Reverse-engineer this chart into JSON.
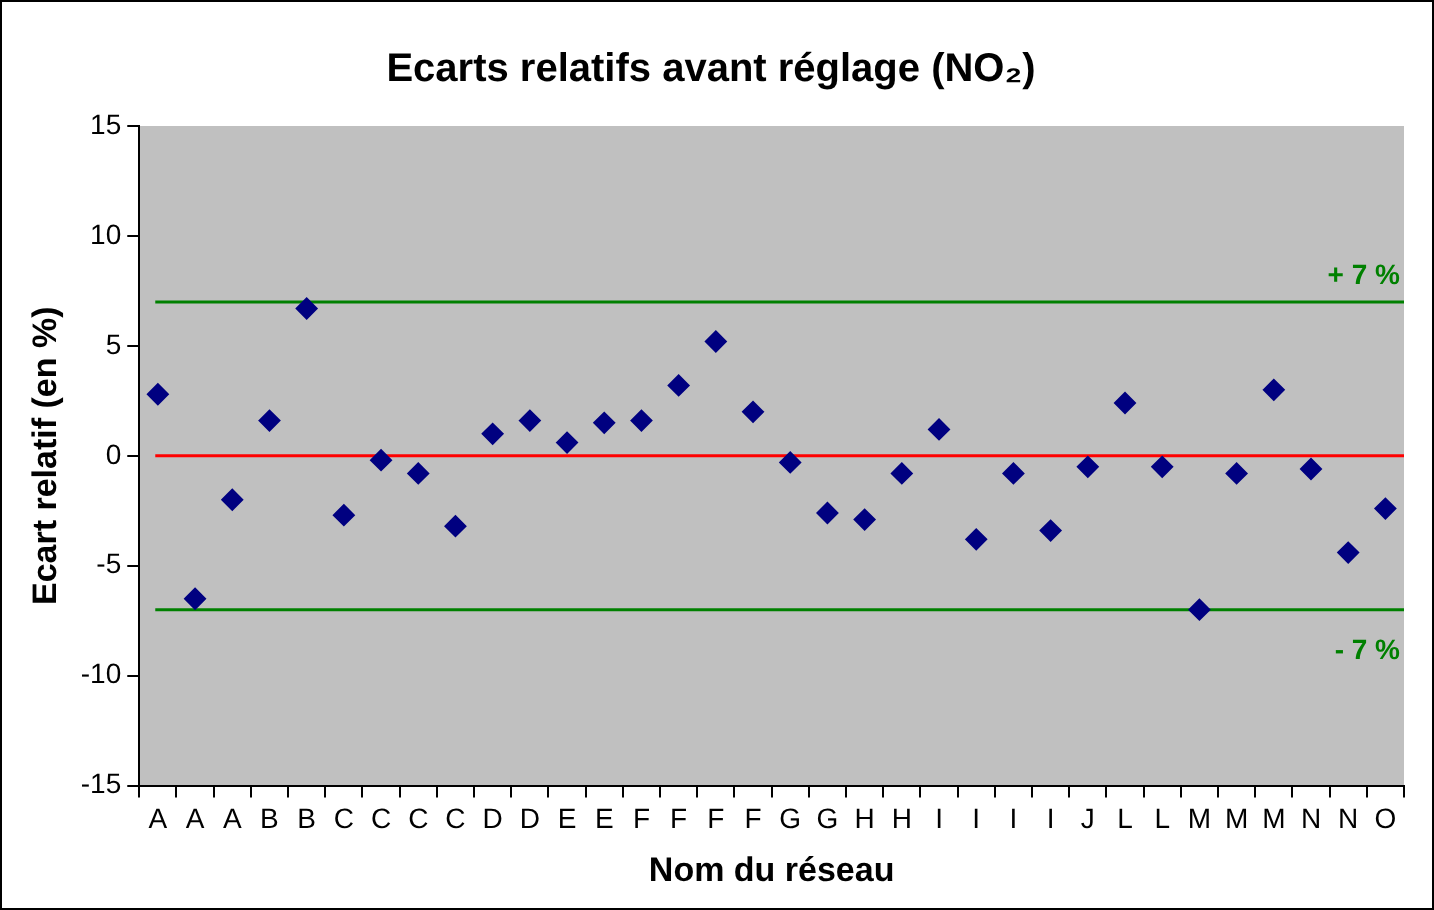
{
  "chart_data": {
    "type": "scatter",
    "title": "Ecarts relatifs avant réglage (NO₂)",
    "xlabel": "Nom du réseau",
    "ylabel": "Ecart relatif (en %)",
    "categories": [
      "A",
      "A",
      "A",
      "B",
      "B",
      "C",
      "C",
      "C",
      "C",
      "D",
      "D",
      "E",
      "E",
      "F",
      "F",
      "F",
      "F",
      "G",
      "G",
      "H",
      "H",
      "I",
      "I",
      "I",
      "I",
      "J",
      "L",
      "L",
      "M",
      "M",
      "M",
      "N",
      "N",
      "O"
    ],
    "series": [
      {
        "color": "#000080",
        "values": [
          2.8,
          -6.5,
          -2,
          1.6,
          6.7,
          -2.7,
          -0.2,
          -0.8,
          -3.2,
          1,
          1.6,
          0.6,
          1.5,
          1.6,
          3.2,
          5.2,
          2,
          -0.3,
          -2.6,
          -2.9,
          -0.8,
          1.2,
          -3.8,
          -0.8,
          -3.4,
          -0.5,
          2.4,
          -0.5,
          -7,
          -0.8,
          3,
          -0.6,
          -4.4,
          -2.4
        ]
      }
    ],
    "ylim": [
      -15,
      15
    ],
    "yticks": [
      -15,
      -10,
      -5,
      0,
      5,
      10,
      15
    ],
    "grid": false,
    "legend": false,
    "marker": "diamond",
    "ref_lines": [
      {
        "axis": "y",
        "value": 7,
        "label": "+ 7 %",
        "color": "#008000"
      },
      {
        "axis": "y",
        "value": -7,
        "label": "- 7 %",
        "color": "#008000"
      },
      {
        "axis": "y",
        "value": 0,
        "label": null,
        "color": "#ff0000"
      }
    ]
  }
}
